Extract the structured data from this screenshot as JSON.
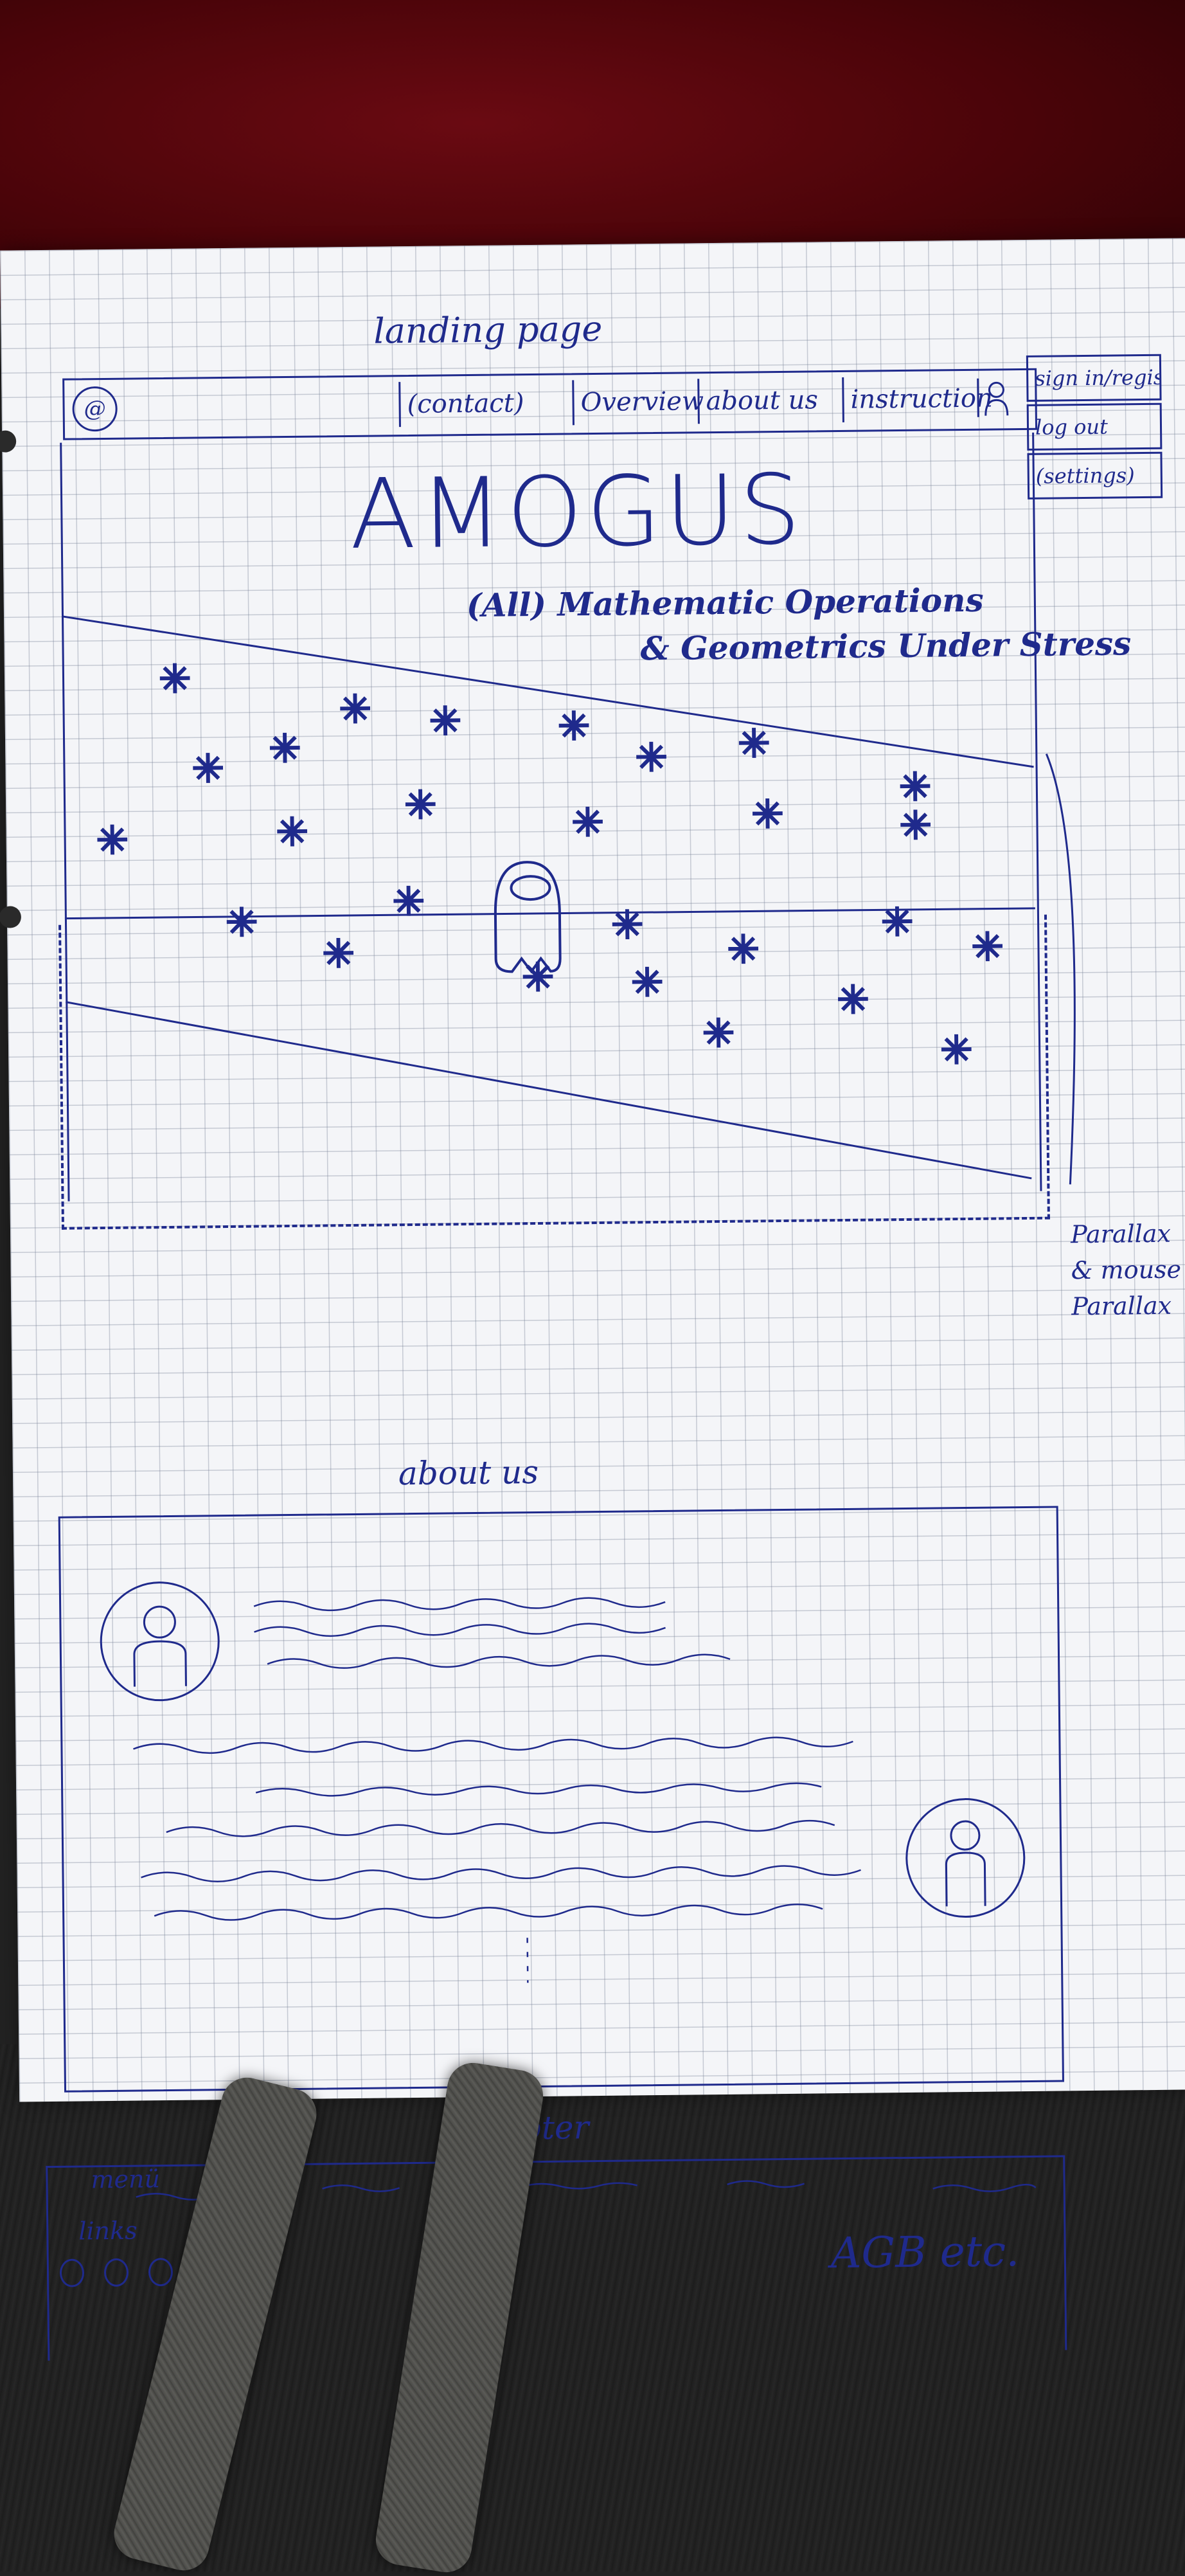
{
  "page_title": "landing page",
  "nav": {
    "logo_icon": "app-logo-icon",
    "items": [
      "(contact)",
      "Overview",
      "about us",
      "instruction"
    ],
    "user_icon": "user-icon"
  },
  "side_menu": [
    "sign in/register",
    "log out",
    "(settings)"
  ],
  "hero": {
    "title": "AMOGUS",
    "subtitle_line1": "(All) Mathematic Operations",
    "subtitle_line2": "& Geometrics Under Stress"
  },
  "parallax_note": [
    "Parallax",
    "& mouse",
    "Parallax"
  ],
  "about": {
    "heading": "about us"
  },
  "footer": {
    "heading": "Footer",
    "menu_label": "menü",
    "links_label": "links",
    "company": "AGB etc."
  },
  "colors": {
    "ink": "#1f2a8c",
    "paper": "#f4f5f8"
  }
}
